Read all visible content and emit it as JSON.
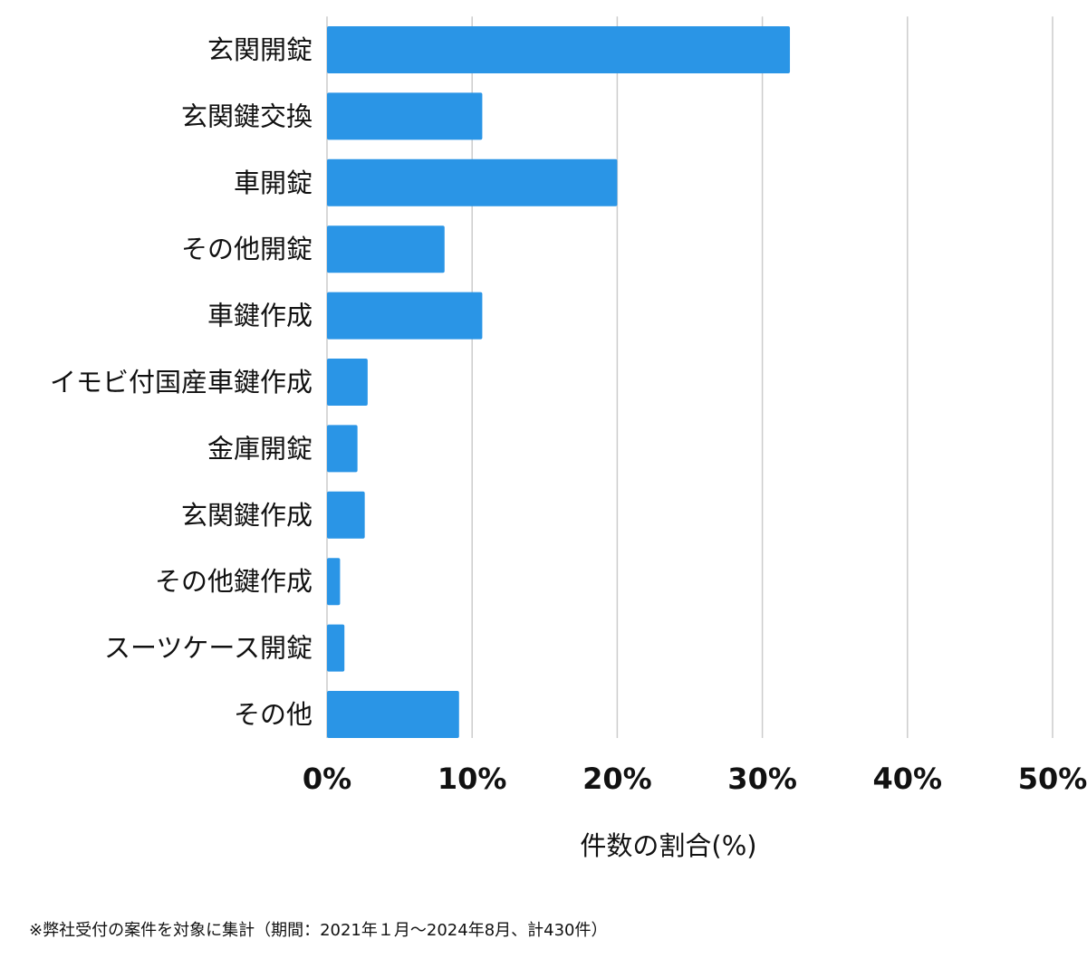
{
  "chart_data": {
    "type": "bar",
    "orientation": "horizontal",
    "x_axis_label": "件数の割合(%)",
    "categories": [
      "玄関開錠",
      "玄関鍵交換",
      "車開錠",
      "その他開錠",
      "車鍵作成",
      "イモビ付国産車鍵作成",
      "金庫開錠",
      "玄関鍵作成",
      "その他鍵作成",
      "スーツケース開錠",
      "その他"
    ],
    "values": [
      31.9,
      10.7,
      20.0,
      8.1,
      10.7,
      2.8,
      2.1,
      2.6,
      0.9,
      1.2,
      9.1
    ],
    "color": "#2a95e6",
    "xlim": [
      0,
      50
    ],
    "xticks": [
      {
        "value": 0,
        "label": "0%"
      },
      {
        "value": 10,
        "label": "10%"
      },
      {
        "value": 20,
        "label": "20%"
      },
      {
        "value": 30,
        "label": "30%"
      },
      {
        "value": 40,
        "label": "40%"
      },
      {
        "value": 50,
        "label": "50%"
      }
    ],
    "grid": true
  },
  "footnote": "※弊社受付の案件を対象に集計（期間：2021年１月〜2024年8月、計430件）"
}
